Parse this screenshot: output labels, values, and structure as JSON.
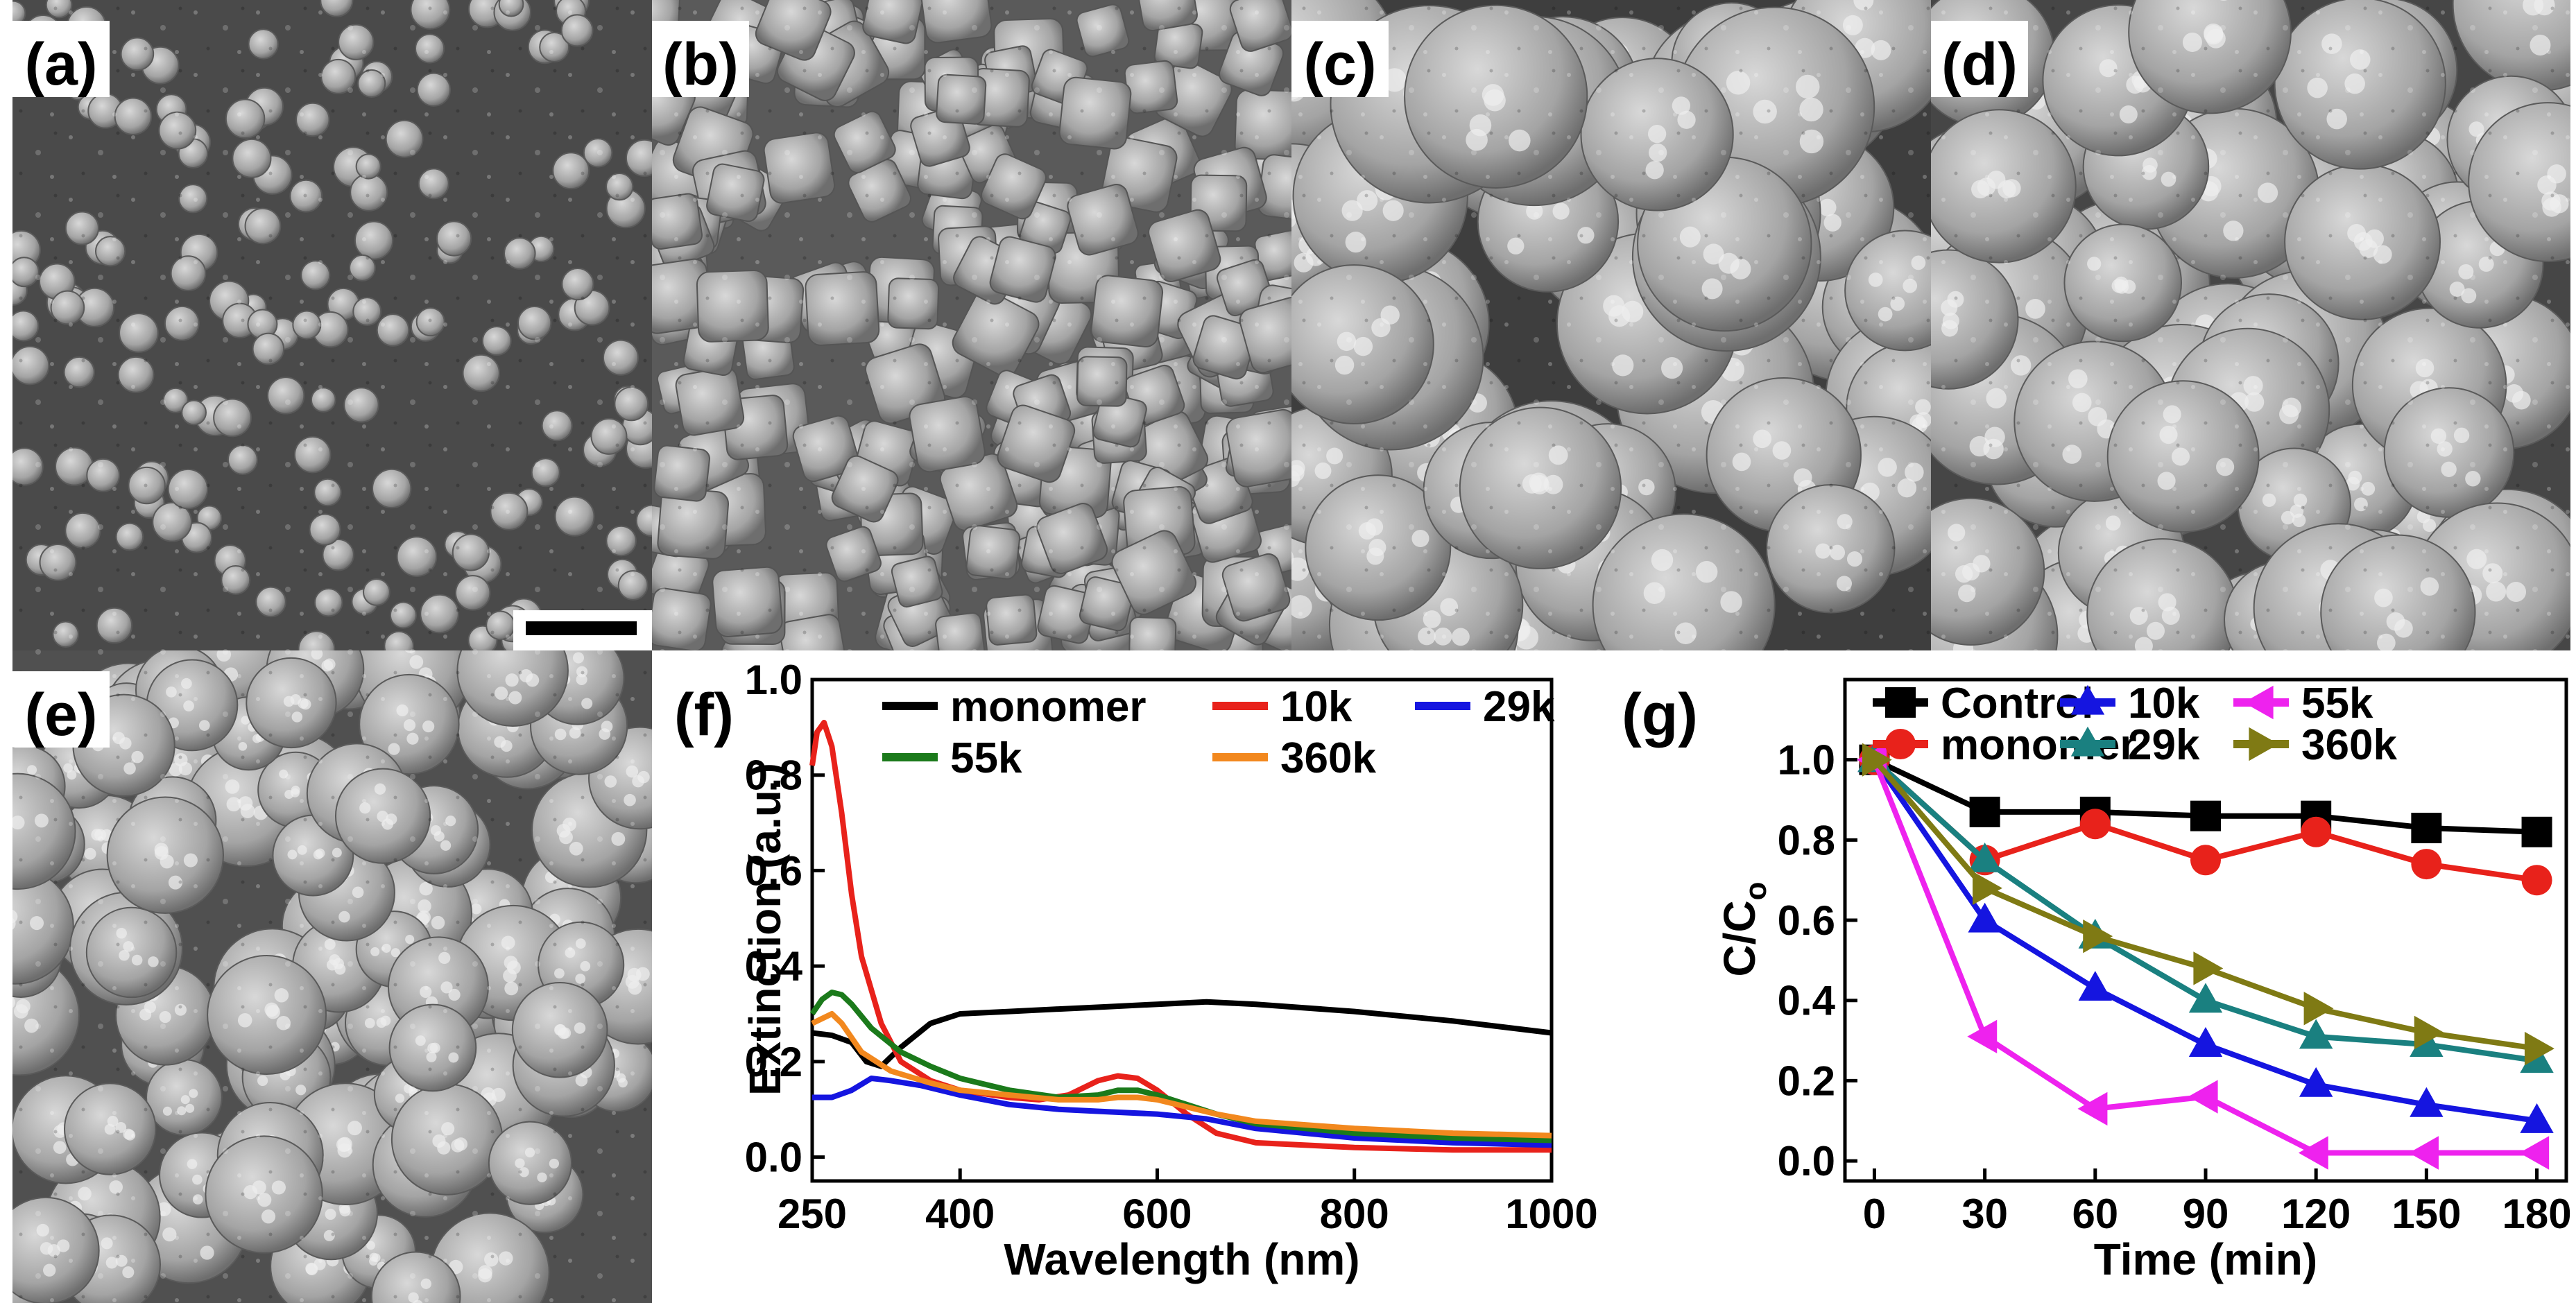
{
  "figure": {
    "panels": {
      "a": {
        "label": "(a)",
        "kind": "SEM micrograph"
      },
      "b": {
        "label": "(b)",
        "kind": "SEM micrograph"
      },
      "c": {
        "label": "(c)",
        "kind": "SEM micrograph"
      },
      "d": {
        "label": "(d)",
        "kind": "SEM micrograph"
      },
      "e": {
        "label": "(e)",
        "kind": "SEM micrograph"
      },
      "f": {
        "label": "(f)"
      },
      "g": {
        "label": "(g)"
      }
    }
  },
  "chart_data": [
    {
      "panel": "f",
      "type": "line",
      "title": "",
      "xlabel": "Wavelength (nm)",
      "ylabel": "Extinction (a.u.)",
      "xlim": [
        250,
        1000
      ],
      "ylim": [
        -0.05,
        1.0
      ],
      "xticks": [
        250,
        400,
        600,
        800,
        1000
      ],
      "xtick_labels": [
        "250",
        "400",
        "600",
        "800",
        "1000"
      ],
      "yticks": [
        0.0,
        0.2,
        0.4,
        0.6,
        0.8,
        1.0
      ],
      "ytick_labels": [
        "0.0",
        "0.2",
        "0.4",
        "0.6",
        "0.8",
        "1.0"
      ],
      "legend": "top, inside",
      "series": [
        {
          "name": "monomer",
          "color": "#000000",
          "x": [
            250,
            270,
            290,
            305,
            320,
            340,
            370,
            400,
            450,
            500,
            550,
            600,
            650,
            700,
            800,
            900,
            1000
          ],
          "y": [
            0.26,
            0.255,
            0.24,
            0.2,
            0.19,
            0.23,
            0.28,
            0.3,
            0.305,
            0.31,
            0.315,
            0.32,
            0.325,
            0.32,
            0.305,
            0.285,
            0.26
          ]
        },
        {
          "name": "10k",
          "color": "#e8221b",
          "x": [
            250,
            255,
            262,
            270,
            280,
            290,
            300,
            320,
            340,
            370,
            400,
            450,
            480,
            510,
            540,
            560,
            580,
            600,
            630,
            660,
            700,
            800,
            900,
            1000
          ],
          "y": [
            0.82,
            0.89,
            0.91,
            0.86,
            0.72,
            0.55,
            0.42,
            0.28,
            0.2,
            0.16,
            0.14,
            0.125,
            0.12,
            0.13,
            0.16,
            0.17,
            0.165,
            0.14,
            0.09,
            0.05,
            0.03,
            0.02,
            0.015,
            0.015
          ]
        },
        {
          "name": "29k",
          "color": "#1515e0",
          "x": [
            250,
            270,
            290,
            310,
            330,
            360,
            400,
            450,
            500,
            550,
            600,
            650,
            700,
            800,
            900,
            1000
          ],
          "y": [
            0.125,
            0.125,
            0.14,
            0.165,
            0.16,
            0.15,
            0.13,
            0.11,
            0.1,
            0.095,
            0.09,
            0.08,
            0.06,
            0.04,
            0.03,
            0.025
          ]
        },
        {
          "name": "55k",
          "color": "#1b7a1b",
          "x": [
            250,
            260,
            270,
            280,
            290,
            310,
            340,
            370,
            400,
            450,
            500,
            540,
            560,
            580,
            600,
            630,
            660,
            700,
            800,
            900,
            1000
          ],
          "y": [
            0.3,
            0.33,
            0.345,
            0.34,
            0.32,
            0.27,
            0.22,
            0.19,
            0.165,
            0.14,
            0.125,
            0.13,
            0.14,
            0.14,
            0.13,
            0.11,
            0.09,
            0.07,
            0.05,
            0.04,
            0.035
          ]
        },
        {
          "name": "360k",
          "color": "#f2881e",
          "x": [
            250,
            260,
            270,
            280,
            300,
            330,
            370,
            400,
            450,
            500,
            540,
            560,
            580,
            600,
            630,
            660,
            700,
            800,
            900,
            1000
          ],
          "y": [
            0.28,
            0.29,
            0.3,
            0.28,
            0.22,
            0.18,
            0.155,
            0.14,
            0.13,
            0.12,
            0.12,
            0.125,
            0.125,
            0.12,
            0.105,
            0.09,
            0.075,
            0.06,
            0.05,
            0.045
          ]
        }
      ]
    },
    {
      "panel": "g",
      "type": "line",
      "title": "",
      "xlabel": "Time (min)",
      "ylabel": "C/C",
      "ylabel_subscript": "o",
      "xlim": [
        -8,
        188
      ],
      "ylim": [
        -0.05,
        1.2
      ],
      "xticks": [
        0,
        30,
        60,
        90,
        120,
        150,
        180
      ],
      "xtick_labels": [
        "0",
        "30",
        "60",
        "90",
        "120",
        "150",
        "180"
      ],
      "yticks": [
        0.0,
        0.2,
        0.4,
        0.6,
        0.8,
        1.0
      ],
      "ytick_labels": [
        "0.0",
        "0.2",
        "0.4",
        "0.6",
        "0.8",
        "1.0"
      ],
      "legend": "top, inside",
      "series": [
        {
          "name": "Control",
          "color": "#000000",
          "marker": "square",
          "x": [
            0,
            30,
            60,
            90,
            120,
            150,
            180
          ],
          "y": [
            1.0,
            0.87,
            0.87,
            0.86,
            0.86,
            0.83,
            0.82
          ]
        },
        {
          "name": "monomer",
          "color": "#e8221b",
          "marker": "circle",
          "x": [
            0,
            30,
            60,
            90,
            120,
            150,
            180
          ],
          "y": [
            1.0,
            0.75,
            0.84,
            0.75,
            0.82,
            0.74,
            0.7
          ]
        },
        {
          "name": "10k",
          "color": "#1515e0",
          "marker": "triangle-up",
          "x": [
            0,
            30,
            60,
            90,
            120,
            150,
            180
          ],
          "y": [
            1.0,
            0.6,
            0.43,
            0.29,
            0.19,
            0.14,
            0.1
          ]
        },
        {
          "name": "29k",
          "color": "#1a8080",
          "marker": "triangle-up",
          "x": [
            0,
            30,
            60,
            90,
            120,
            150,
            180
          ],
          "y": [
            1.0,
            0.75,
            0.56,
            0.4,
            0.31,
            0.29,
            0.25
          ]
        },
        {
          "name": "55k",
          "color": "#ee22ee",
          "marker": "triangle-left",
          "x": [
            0,
            30,
            60,
            90,
            120,
            150,
            180
          ],
          "y": [
            1.0,
            0.31,
            0.13,
            0.16,
            0.02,
            0.02,
            0.02
          ]
        },
        {
          "name": "360k",
          "color": "#7f7a14",
          "marker": "triangle-right",
          "x": [
            0,
            30,
            60,
            90,
            120,
            150,
            180
          ],
          "y": [
            1.0,
            0.68,
            0.56,
            0.48,
            0.38,
            0.32,
            0.28
          ]
        }
      ]
    }
  ]
}
